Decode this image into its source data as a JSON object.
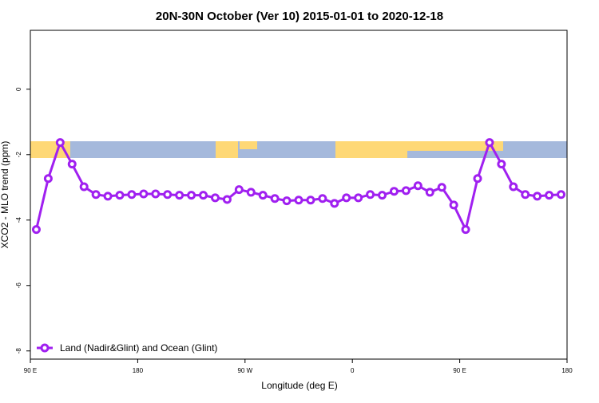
{
  "chart_data": {
    "type": "line",
    "title": "20N-30N October (Ver 10)   2015-01-01 to 2020-12-18",
    "x_label": "Longitude (deg E)",
    "y_label": "XCO2 - MLO trend (ppm)",
    "xlim": [
      90,
      540
    ],
    "xticks": [
      {
        "value": 90,
        "label": "90 E"
      },
      {
        "value": 180,
        "label": "180"
      },
      {
        "value": 270,
        "label": "90 W"
      },
      {
        "value": 360,
        "label": "0"
      },
      {
        "value": 450,
        "label": "90 E"
      },
      {
        "value": 540,
        "label": "180"
      }
    ],
    "ylim": [
      -8.25,
      1.8
    ],
    "yticks": [
      0,
      -2,
      -4,
      -6,
      -8
    ],
    "legend": "bottomleft",
    "x": [
      95,
      105,
      115,
      125,
      135,
      145,
      155,
      165,
      175,
      185,
      195,
      205,
      215,
      225,
      235,
      245,
      255,
      265,
      275,
      285,
      295,
      305,
      315,
      325,
      335,
      345,
      355,
      365,
      375,
      385,
      395,
      405,
      415,
      425,
      435,
      445,
      455,
      465,
      475,
      485,
      495,
      505,
      515,
      525,
      535
    ],
    "series": [
      {
        "name": "Land (Nadir&Glint) and Ocean (Glint)",
        "color": "#a020f0",
        "values": [
          -4.29,
          -2.73,
          -1.63,
          -2.29,
          -2.98,
          -3.22,
          -3.27,
          -3.24,
          -3.22,
          -3.2,
          -3.2,
          -3.22,
          -3.24,
          -3.24,
          -3.24,
          -3.32,
          -3.37,
          -3.07,
          -3.15,
          -3.24,
          -3.34,
          -3.41,
          -3.39,
          -3.39,
          -3.34,
          -3.49,
          -3.32,
          -3.32,
          -3.22,
          -3.24,
          -3.12,
          -3.1,
          -2.95,
          -3.15,
          -3.0,
          -3.54,
          -4.29,
          -2.73,
          -1.63,
          -2.29,
          -2.98,
          -3.22,
          -3.27,
          -3.24,
          -3.22
        ]
      }
    ]
  }
}
